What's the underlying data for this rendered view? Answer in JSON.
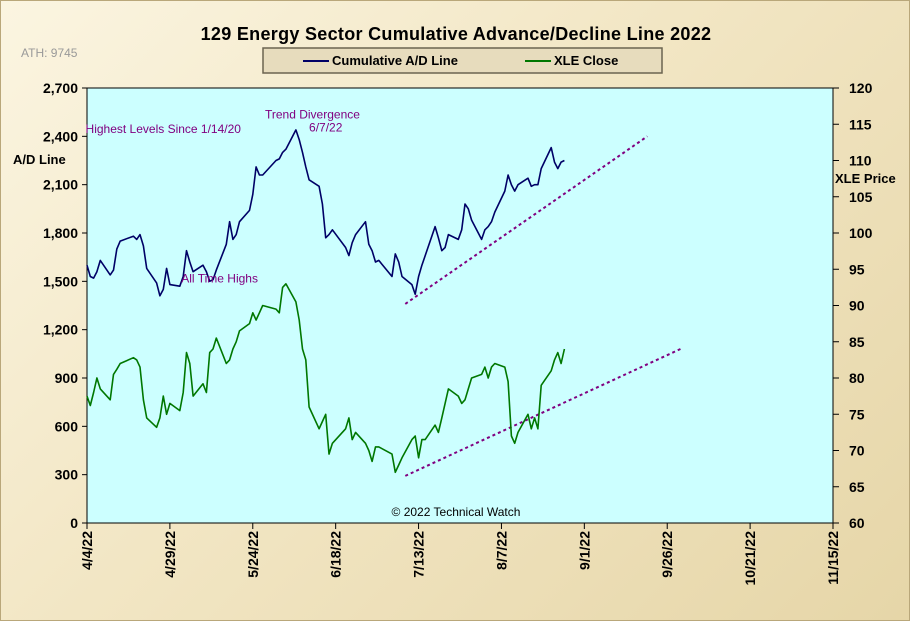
{
  "chart_data": {
    "type": "line",
    "title": "129 Energy Sector Cumulative Advance/Decline Line 2022",
    "ath_note": "ATH: 9745",
    "copyright": "© 2022 Technical Watch",
    "left_axis": {
      "label": "A/D Line",
      "range": [
        0,
        2700
      ],
      "ticks": [
        "0",
        "300",
        "600",
        "900",
        "1,200",
        "1,500",
        "1,800",
        "2,100",
        "2,400",
        "2,700"
      ]
    },
    "right_axis": {
      "label": "XLE Price",
      "range": [
        60,
        120
      ],
      "ticks": [
        "60",
        "65",
        "70",
        "75",
        "80",
        "85",
        "90",
        "95",
        "100",
        "105",
        "110",
        "115",
        "120"
      ]
    },
    "x_axis": {
      "range": [
        "2022-04-04",
        "2022-11-15"
      ],
      "ticks": [
        "4/4/22",
        "4/29/22",
        "5/24/22",
        "6/18/22",
        "7/13/22",
        "8/7/22",
        "9/1/22",
        "9/26/22",
        "10/21/22",
        "11/15/22"
      ]
    },
    "legend": {
      "placement": "top-center",
      "entries": [
        {
          "label": "Cumulative A/D Line",
          "color": "#000066"
        },
        {
          "label": "XLE Close",
          "color": "#007700"
        }
      ]
    },
    "grid": false,
    "colors": {
      "plot_bg": "#ccffff",
      "ad_line": "#000066",
      "xle_line": "#007700",
      "trend": "#800080"
    },
    "series": [
      {
        "name": "Cumulative A/D Line",
        "axis": "left",
        "x": [
          "2022-04-04",
          "2022-04-05",
          "2022-04-06",
          "2022-04-07",
          "2022-04-08",
          "2022-04-11",
          "2022-04-12",
          "2022-04-13",
          "2022-04-14",
          "2022-04-18",
          "2022-04-19",
          "2022-04-20",
          "2022-04-21",
          "2022-04-22",
          "2022-04-25",
          "2022-04-26",
          "2022-04-27",
          "2022-04-28",
          "2022-04-29",
          "2022-05-02",
          "2022-05-03",
          "2022-05-04",
          "2022-05-05",
          "2022-05-06",
          "2022-05-09",
          "2022-05-10",
          "2022-05-11",
          "2022-05-12",
          "2022-05-13",
          "2022-05-16",
          "2022-05-17",
          "2022-05-18",
          "2022-05-19",
          "2022-05-20",
          "2022-05-23",
          "2022-05-24",
          "2022-05-25",
          "2022-05-26",
          "2022-05-27",
          "2022-05-31",
          "2022-06-01",
          "2022-06-02",
          "2022-06-03",
          "2022-06-06",
          "2022-06-07",
          "2022-06-08",
          "2022-06-09",
          "2022-06-10",
          "2022-06-13",
          "2022-06-14",
          "2022-06-15",
          "2022-06-16",
          "2022-06-17",
          "2022-06-21",
          "2022-06-22",
          "2022-06-23",
          "2022-06-24",
          "2022-06-27",
          "2022-06-28",
          "2022-06-29",
          "2022-06-30",
          "2022-07-01",
          "2022-07-05",
          "2022-07-06",
          "2022-07-07",
          "2022-07-08",
          "2022-07-11",
          "2022-07-12",
          "2022-07-13",
          "2022-07-14",
          "2022-07-15",
          "2022-07-18",
          "2022-07-19",
          "2022-07-20",
          "2022-07-21",
          "2022-07-22",
          "2022-07-25",
          "2022-07-26",
          "2022-07-27",
          "2022-07-28",
          "2022-07-29",
          "2022-08-01",
          "2022-08-02",
          "2022-08-03",
          "2022-08-04",
          "2022-08-05",
          "2022-08-08",
          "2022-08-09",
          "2022-08-10",
          "2022-08-11",
          "2022-08-12",
          "2022-08-15",
          "2022-08-16",
          "2022-08-17",
          "2022-08-18",
          "2022-08-19",
          "2022-08-22",
          "2022-08-23",
          "2022-08-24",
          "2022-08-25",
          "2022-08-26"
        ],
        "values": [
          1600,
          1530,
          1520,
          1560,
          1630,
          1540,
          1570,
          1700,
          1750,
          1780,
          1760,
          1790,
          1720,
          1580,
          1490,
          1410,
          1450,
          1580,
          1480,
          1470,
          1530,
          1690,
          1620,
          1560,
          1600,
          1560,
          1500,
          1510,
          1570,
          1730,
          1870,
          1760,
          1790,
          1870,
          1940,
          2040,
          2210,
          2160,
          2160,
          2250,
          2260,
          2300,
          2320,
          2440,
          2380,
          2300,
          2210,
          2130,
          2090,
          1980,
          1770,
          1790,
          1820,
          1710,
          1660,
          1740,
          1790,
          1870,
          1730,
          1690,
          1620,
          1630,
          1530,
          1670,
          1620,
          1530,
          1480,
          1420,
          1530,
          1600,
          1660,
          1840,
          1770,
          1690,
          1710,
          1790,
          1760,
          1820,
          1980,
          1950,
          1880,
          1760,
          1820,
          1840,
          1870,
          1930,
          2060,
          2160,
          2100,
          2060,
          2100,
          2140,
          2090,
          2100,
          2100,
          2200,
          2330,
          2240,
          2200,
          2240,
          2250
        ]
      },
      {
        "name": "XLE Close",
        "axis": "right",
        "x": [
          "2022-04-04",
          "2022-04-05",
          "2022-04-06",
          "2022-04-07",
          "2022-04-08",
          "2022-04-11",
          "2022-04-12",
          "2022-04-13",
          "2022-04-14",
          "2022-04-18",
          "2022-04-19",
          "2022-04-20",
          "2022-04-21",
          "2022-04-22",
          "2022-04-25",
          "2022-04-26",
          "2022-04-27",
          "2022-04-28",
          "2022-04-29",
          "2022-05-02",
          "2022-05-03",
          "2022-05-04",
          "2022-05-05",
          "2022-05-06",
          "2022-05-09",
          "2022-05-10",
          "2022-05-11",
          "2022-05-12",
          "2022-05-13",
          "2022-05-16",
          "2022-05-17",
          "2022-05-18",
          "2022-05-19",
          "2022-05-20",
          "2022-05-23",
          "2022-05-24",
          "2022-05-25",
          "2022-05-26",
          "2022-05-27",
          "2022-05-31",
          "2022-06-01",
          "2022-06-02",
          "2022-06-03",
          "2022-06-06",
          "2022-06-07",
          "2022-06-08",
          "2022-06-09",
          "2022-06-10",
          "2022-06-13",
          "2022-06-14",
          "2022-06-15",
          "2022-06-16",
          "2022-06-17",
          "2022-06-21",
          "2022-06-22",
          "2022-06-23",
          "2022-06-24",
          "2022-06-27",
          "2022-06-28",
          "2022-06-29",
          "2022-06-30",
          "2022-07-01",
          "2022-07-05",
          "2022-07-06",
          "2022-07-07",
          "2022-07-08",
          "2022-07-11",
          "2022-07-12",
          "2022-07-13",
          "2022-07-14",
          "2022-07-15",
          "2022-07-18",
          "2022-07-19",
          "2022-07-20",
          "2022-07-21",
          "2022-07-22",
          "2022-07-25",
          "2022-07-26",
          "2022-07-27",
          "2022-07-28",
          "2022-07-29",
          "2022-08-01",
          "2022-08-02",
          "2022-08-03",
          "2022-08-04",
          "2022-08-05",
          "2022-08-08",
          "2022-08-09",
          "2022-08-10",
          "2022-08-11",
          "2022-08-12",
          "2022-08-15",
          "2022-08-16",
          "2022-08-17",
          "2022-08-18",
          "2022-08-19",
          "2022-08-22",
          "2022-08-23",
          "2022-08-24",
          "2022-08-25",
          "2022-08-26"
        ],
        "values": [
          77.5,
          76.2,
          78.0,
          80.0,
          78.5,
          77.0,
          80.5,
          81.2,
          82.0,
          82.8,
          82.5,
          81.5,
          77.0,
          74.5,
          73.2,
          74.5,
          77.5,
          75.0,
          76.5,
          75.5,
          78.0,
          83.5,
          82.0,
          77.5,
          79.2,
          78.0,
          83.5,
          84.0,
          85.5,
          82.0,
          82.5,
          84.0,
          85.0,
          86.5,
          87.5,
          89.0,
          88.0,
          89.0,
          90.0,
          89.5,
          89.0,
          92.5,
          93.0,
          90.5,
          88.0,
          84.0,
          82.5,
          76.0,
          73.0,
          74.0,
          75.0,
          69.5,
          71.0,
          73.0,
          74.5,
          71.5,
          72.5,
          71.0,
          70.0,
          68.5,
          70.5,
          70.5,
          69.5,
          67.0,
          68.0,
          69.0,
          71.5,
          72.0,
          69.0,
          71.5,
          71.5,
          73.5,
          72.5,
          74.5,
          76.5,
          78.5,
          77.5,
          76.5,
          77.0,
          78.5,
          80.0,
          80.5,
          81.5,
          80.0,
          81.5,
          82.0,
          81.5,
          79.5,
          72.0,
          71.0,
          72.5,
          75.0,
          73.0,
          74.5,
          73.0,
          79.0,
          81.0,
          82.5,
          83.5,
          82.0,
          84.0
        ]
      }
    ],
    "trendlines": [
      {
        "axis": "left",
        "from": {
          "x": "2022-07-09",
          "y": 1360
        },
        "to": {
          "x": "2022-09-20",
          "y": 2400
        }
      },
      {
        "axis": "right",
        "from": {
          "x": "2022-07-09",
          "y": 66.5
        },
        "to": {
          "x": "2022-09-30",
          "y": 84.0
        }
      }
    ],
    "annotations": [
      {
        "text": "Highest Levels  Since 1/14/20",
        "anchor": {
          "x": "2022-04-27",
          "y": 2420
        },
        "axis": "left"
      },
      {
        "text": "Trend  Divergence",
        "anchor": {
          "x": "2022-06-11",
          "y": 2510
        },
        "axis": "left"
      },
      {
        "text": "6/7/22",
        "anchor": {
          "x": "2022-06-15",
          "y": 2430
        },
        "axis": "left"
      },
      {
        "text": "All Time Highs",
        "anchor": {
          "x": "2022-05-14",
          "y": 93.2
        },
        "axis": "right"
      }
    ]
  }
}
